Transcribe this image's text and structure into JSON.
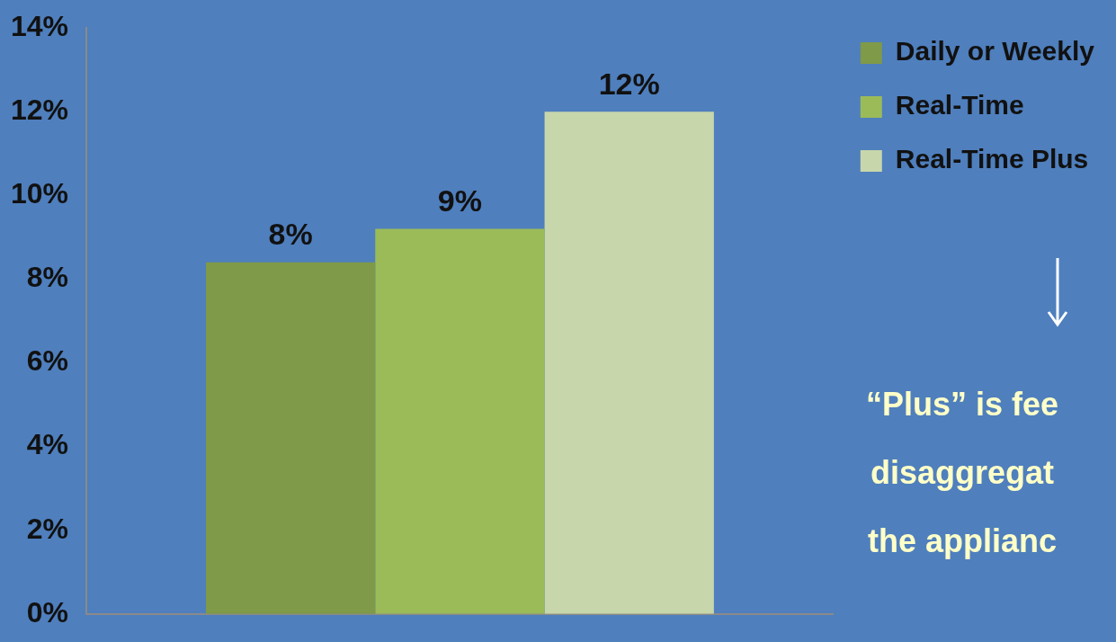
{
  "chart_data": {
    "type": "bar",
    "categories": [
      null
    ],
    "series": [
      {
        "name": "Daily or Weekly",
        "color": "#7f9a48",
        "values": [
          8.4
        ],
        "value_labels": [
          "8%"
        ]
      },
      {
        "name": "Real-Time",
        "color": "#9bbb59",
        "values": [
          9.2
        ],
        "value_labels": [
          "9%"
        ]
      },
      {
        "name": "Real-Time Plus",
        "color": "#c8d6ab",
        "values": [
          12
        ],
        "value_labels": [
          "12%"
        ]
      }
    ],
    "ylim": [
      0,
      14
    ],
    "yticks": [
      {
        "value": 0,
        "label": "0%"
      },
      {
        "value": 2,
        "label": "2%"
      },
      {
        "value": 4,
        "label": "4%"
      },
      {
        "value": 6,
        "label": "6%"
      },
      {
        "value": 8,
        "label": "8%"
      },
      {
        "value": 10,
        "label": "10%"
      },
      {
        "value": 12,
        "label": "12%"
      },
      {
        "value": 14,
        "label": "14%"
      }
    ],
    "grid": false,
    "legend": "top right",
    "annotations": [
      "“Plus” is fee\ndisaggregat\nthe applianc"
    ]
  }
}
